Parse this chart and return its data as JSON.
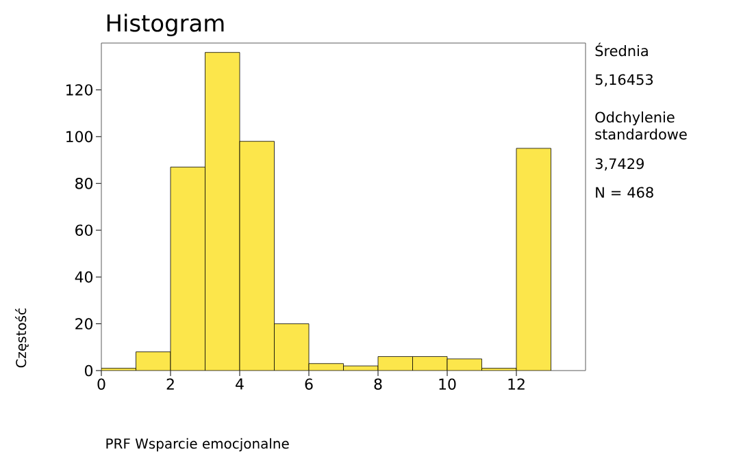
{
  "chart_data": {
    "type": "histogram",
    "title": "Histogram",
    "xlabel": "PRF Wsparcie emocjonalne",
    "ylabel": "Częstość",
    "annotations": [
      "Średnia",
      "5,16453",
      "Odchylenie standardowe",
      "3,7429",
      "N = 468"
    ],
    "bins": [
      0,
      1,
      2,
      3,
      4,
      5,
      6,
      7,
      8,
      9,
      10,
      11,
      12,
      13
    ],
    "values": [
      1,
      8,
      87,
      136,
      98,
      20,
      3,
      2,
      6,
      6,
      5,
      1,
      95
    ],
    "color": "#fce64b",
    "xlim": [
      0,
      14
    ],
    "ylim": [
      0,
      140
    ],
    "xticks": [
      0,
      2,
      4,
      6,
      8,
      10,
      12
    ],
    "yticks": [
      0,
      20,
      40,
      60,
      80,
      100,
      120
    ]
  }
}
